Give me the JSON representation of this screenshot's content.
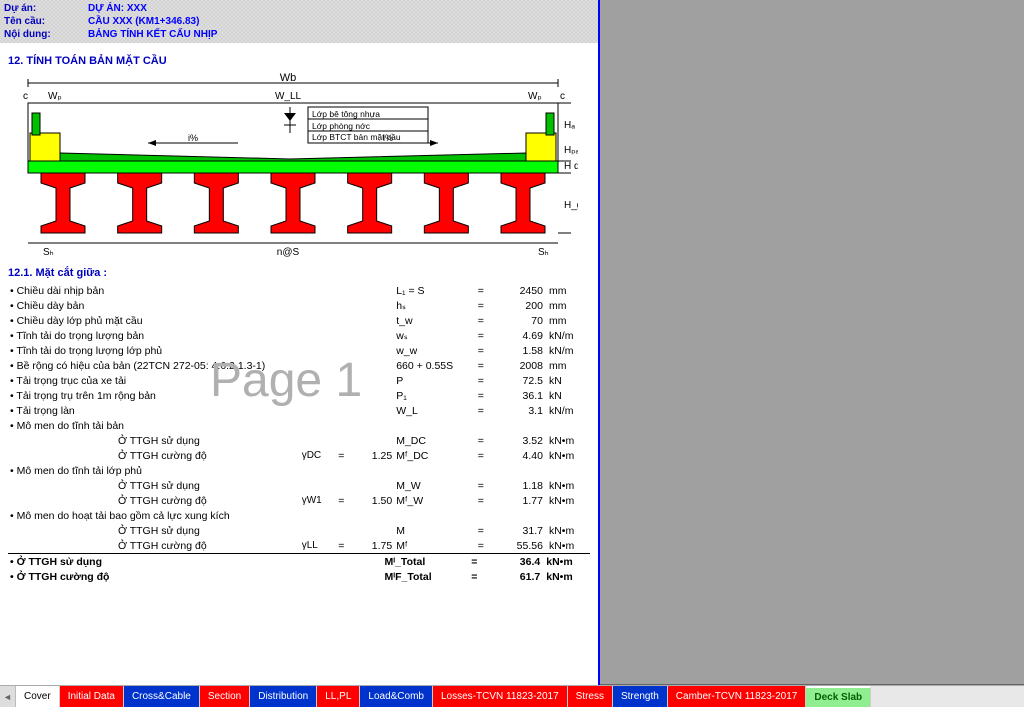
{
  "header": {
    "labels": {
      "project": "Dự án:",
      "bridge": "Tên cầu:",
      "content": "Nội dung:"
    },
    "values": {
      "project": "DỰ ÁN: XXX",
      "bridge": "CẦU XXX (KM1+346.83)",
      "content": "BẢNG TÍNH KẾT CẤU NHỊP"
    }
  },
  "section_title": "12. TÍNH TOÁN BẢN MẶT CẦU",
  "subsection_title": "12.1. Mặt cắt giữa :",
  "watermark": "Page 1",
  "diagram": {
    "top_labels": {
      "wb": "Wb",
      "c_left": "c",
      "wp_left": "Wₚ",
      "wll": "W_LL",
      "wp_right": "Wₚ",
      "c_right": "c"
    },
    "layer_labels": [
      "Lớp bê tông nhựa",
      "Lớp phòng nớc",
      "Lớp BTCT bản mặt cầu"
    ],
    "slope": "i%",
    "right_labels": [
      "Hₐ",
      "Hₚₐ",
      "H d",
      "H_g"
    ],
    "bottom_labels": {
      "sh_left": "Sₕ",
      "nS": "n@S",
      "sh_right": "Sₕ"
    },
    "colors": {
      "deck_green": "#00c000",
      "edge_yellow": "#ffff00",
      "haunch_green": "#00ff00",
      "girder_red": "#ff0000",
      "girder_stroke": "#000000",
      "line": "#000000"
    },
    "girder_count": 7
  },
  "calc": [
    {
      "desc": "Chiều dài nhịp bản",
      "var": "L₁ = S",
      "val": "2450",
      "unit": "mm"
    },
    {
      "desc": "Chiều dày bản",
      "var": "hₛ",
      "val": "200",
      "unit": "mm"
    },
    {
      "desc": "Chiều dày lớp phủ mặt cầu",
      "var": "t_w",
      "val": "70",
      "unit": "mm"
    },
    {
      "desc": "Tĩnh tải do trọng lượng bản",
      "var": "wₛ",
      "val": "4.69",
      "unit": "kN/m"
    },
    {
      "desc": "Tĩnh tải do trọng lượng lớp phủ",
      "var": "w_w",
      "val": "1.58",
      "unit": "kN/m"
    },
    {
      "desc": "Bề rộng có hiệu của bản (22TCN 272-05: 4.6.2.1.3-1)",
      "var": "660 + 0.55S",
      "val": "2008",
      "unit": "mm"
    },
    {
      "desc": "Tải trọng trục của xe tải",
      "var": "P",
      "val": "72.5",
      "unit": "kN"
    },
    {
      "desc": "Tải trọng trụ trên 1m rộng bản",
      "var": "P₁",
      "val": "36.1",
      "unit": "kN"
    },
    {
      "desc": "Tải trọng làn",
      "var": "W_L",
      "val": "3.1",
      "unit": "kN/m"
    },
    {
      "desc": "Mô men do tĩnh tải bản",
      "group": true
    },
    {
      "desc": "Ở TTGH sử dụng",
      "indent": true,
      "var": "M_DC",
      "val": "3.52",
      "unit": "kN•m"
    },
    {
      "desc": "Ở TTGH cường độ",
      "indent": true,
      "gam": "γDC",
      "gv": "1.25",
      "var": "Mᶠ_DC",
      "val": "4.40",
      "unit": "kN•m"
    },
    {
      "desc": "Mô men do tĩnh tải lớp phủ",
      "group": true
    },
    {
      "desc": "Ở TTGH sử dụng",
      "indent": true,
      "var": "M_W",
      "val": "1.18",
      "unit": "kN•m"
    },
    {
      "desc": "Ở TTGH cường độ",
      "indent": true,
      "gam": "γW1",
      "gv": "1.50",
      "var": "Mᶠ_W",
      "val": "1.77",
      "unit": "kN•m"
    },
    {
      "desc": "Mô men do hoạt tải bao gồm cả lực xung kích",
      "group": true
    },
    {
      "desc": "Ở TTGH sử dụng",
      "indent": true,
      "var": "M",
      "val": "31.7",
      "unit": "kN•m"
    },
    {
      "desc": "Ở TTGH cường độ",
      "indent": true,
      "gam": "γLL",
      "gv": "1.75",
      "var": "Mᶠ",
      "val": "55.56",
      "unit": "kN•m"
    }
  ],
  "totals": [
    {
      "desc": "Ở TTGH sử dụng",
      "var": "Mᴵ_Total",
      "val": "36.4",
      "unit": "kN•m"
    },
    {
      "desc": "Ở TTGH cường độ",
      "var": "MᴵF_Total",
      "val": "61.7",
      "unit": "kN•m"
    }
  ],
  "tabs": [
    {
      "label": "Cover",
      "style": "white"
    },
    {
      "label": "Initial Data",
      "style": "red"
    },
    {
      "label": "Cross&Cable",
      "style": "blue"
    },
    {
      "label": "Section",
      "style": "red"
    },
    {
      "label": "Distribution",
      "style": "blue"
    },
    {
      "label": "LL,PL",
      "style": "red"
    },
    {
      "label": "Load&Comb",
      "style": "blue"
    },
    {
      "label": "Losses-TCVN 11823-2017",
      "style": "red"
    },
    {
      "label": "Stress",
      "style": "red"
    },
    {
      "label": "Strength",
      "style": "blue"
    },
    {
      "label": "Camber-TCVN 11823-2017",
      "style": "red"
    },
    {
      "label": "Deck Slab",
      "style": "green",
      "active": true
    }
  ]
}
